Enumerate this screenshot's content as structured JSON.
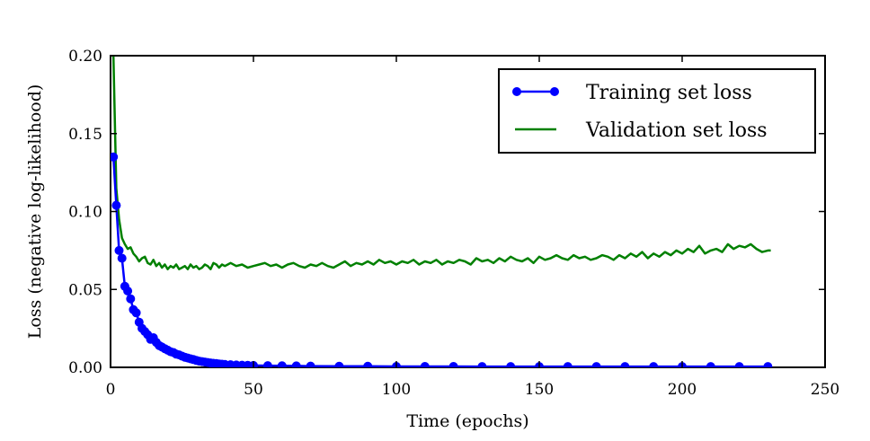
{
  "chart_data": {
    "type": "line",
    "title": "",
    "xlabel": "Time (epochs)",
    "ylabel": "Loss (negative log-likelihood)",
    "xlim": [
      0,
      250
    ],
    "ylim": [
      0,
      0.2
    ],
    "xticks": [
      0,
      50,
      100,
      150,
      200,
      250
    ],
    "xtick_labels": [
      "0",
      "50",
      "100",
      "150",
      "200",
      "250"
    ],
    "yticks": [
      0,
      0.05,
      0.1,
      0.15,
      0.2
    ],
    "ytick_labels": [
      "0.00",
      "0.05",
      "0.10",
      "0.15",
      "0.20"
    ],
    "grid": false,
    "legend_position": "top-right",
    "series": [
      {
        "name": "Training set loss",
        "color": "#0000ff",
        "style": "line-with-circle-markers",
        "x": [
          1,
          2,
          3,
          4,
          5,
          6,
          7,
          8,
          9,
          10,
          11,
          12,
          13,
          14,
          15,
          16,
          17,
          18,
          19,
          20,
          21,
          22,
          23,
          24,
          25,
          26,
          27,
          28,
          29,
          30,
          31,
          32,
          33,
          34,
          35,
          36,
          37,
          38,
          39,
          40,
          42,
          44,
          46,
          48,
          50,
          55,
          60,
          65,
          70,
          80,
          90,
          100,
          110,
          120,
          130,
          140,
          150,
          160,
          170,
          180,
          190,
          200,
          210,
          220,
          230
        ],
        "y": [
          0.135,
          0.104,
          0.075,
          0.07,
          0.052,
          0.049,
          0.044,
          0.037,
          0.035,
          0.029,
          0.025,
          0.023,
          0.021,
          0.018,
          0.019,
          0.016,
          0.014,
          0.013,
          0.012,
          0.011,
          0.01,
          0.0095,
          0.0085,
          0.008,
          0.0072,
          0.0065,
          0.006,
          0.0055,
          0.005,
          0.0045,
          0.004,
          0.0037,
          0.0034,
          0.0031,
          0.0028,
          0.0026,
          0.0024,
          0.0022,
          0.002,
          0.0019,
          0.0017,
          0.0015,
          0.0014,
          0.0013,
          0.0012,
          0.0011,
          0.001,
          0.0009,
          0.0008,
          0.0007,
          0.0007,
          0.0006,
          0.0006,
          0.0006,
          0.0005,
          0.0005,
          0.0005,
          0.0005,
          0.0005,
          0.0005,
          0.0005,
          0.0005,
          0.0005,
          0.0005,
          0.0005
        ]
      },
      {
        "name": "Validation set loss",
        "color": "#008000",
        "style": "line",
        "x": [
          1,
          2,
          3,
          4,
          5,
          6,
          7,
          8,
          9,
          10,
          11,
          12,
          13,
          14,
          15,
          16,
          17,
          18,
          19,
          20,
          21,
          22,
          23,
          24,
          25,
          26,
          27,
          28,
          29,
          30,
          31,
          32,
          33,
          34,
          35,
          36,
          37,
          38,
          39,
          40,
          42,
          44,
          46,
          48,
          50,
          52,
          54,
          56,
          58,
          60,
          62,
          64,
          66,
          68,
          70,
          72,
          74,
          76,
          78,
          80,
          82,
          84,
          86,
          88,
          90,
          92,
          94,
          96,
          98,
          100,
          102,
          104,
          106,
          108,
          110,
          112,
          114,
          116,
          118,
          120,
          122,
          124,
          126,
          128,
          130,
          132,
          134,
          136,
          138,
          140,
          142,
          144,
          146,
          148,
          150,
          152,
          154,
          156,
          158,
          160,
          162,
          164,
          166,
          168,
          170,
          172,
          174,
          176,
          178,
          180,
          182,
          184,
          186,
          188,
          190,
          192,
          194,
          196,
          198,
          200,
          202,
          204,
          206,
          208,
          210,
          212,
          214,
          216,
          218,
          220,
          222,
          224,
          226,
          228,
          230,
          231
        ],
        "y": [
          0.2,
          0.115,
          0.095,
          0.083,
          0.079,
          0.076,
          0.077,
          0.073,
          0.071,
          0.068,
          0.07,
          0.071,
          0.067,
          0.066,
          0.069,
          0.065,
          0.067,
          0.064,
          0.066,
          0.063,
          0.065,
          0.064,
          0.066,
          0.063,
          0.064,
          0.065,
          0.063,
          0.066,
          0.064,
          0.065,
          0.063,
          0.064,
          0.066,
          0.065,
          0.063,
          0.067,
          0.066,
          0.064,
          0.066,
          0.065,
          0.067,
          0.065,
          0.066,
          0.064,
          0.065,
          0.066,
          0.067,
          0.065,
          0.066,
          0.064,
          0.066,
          0.067,
          0.065,
          0.064,
          0.066,
          0.065,
          0.067,
          0.065,
          0.064,
          0.066,
          0.068,
          0.065,
          0.067,
          0.066,
          0.068,
          0.066,
          0.069,
          0.067,
          0.068,
          0.066,
          0.068,
          0.067,
          0.069,
          0.066,
          0.068,
          0.067,
          0.069,
          0.066,
          0.068,
          0.067,
          0.069,
          0.068,
          0.066,
          0.07,
          0.068,
          0.069,
          0.067,
          0.07,
          0.068,
          0.071,
          0.069,
          0.068,
          0.07,
          0.067,
          0.071,
          0.069,
          0.07,
          0.072,
          0.07,
          0.069,
          0.072,
          0.07,
          0.071,
          0.069,
          0.07,
          0.072,
          0.071,
          0.069,
          0.072,
          0.07,
          0.073,
          0.071,
          0.074,
          0.07,
          0.073,
          0.071,
          0.074,
          0.072,
          0.075,
          0.073,
          0.076,
          0.074,
          0.078,
          0.073,
          0.075,
          0.076,
          0.074,
          0.079,
          0.076,
          0.078,
          0.077,
          0.079,
          0.076,
          0.074,
          0.075,
          0.075
        ]
      }
    ]
  }
}
